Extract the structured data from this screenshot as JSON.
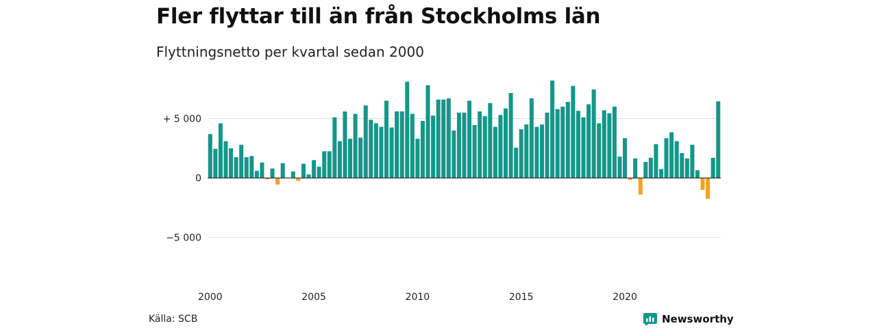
{
  "header": {
    "title": "Fler flyttar till än från Stockholms län",
    "subtitle": "Flyttningsnetto per kvartal sedan 2000"
  },
  "footer": {
    "source": "Källa: SCB",
    "brand": "Newsworthy"
  },
  "colors": {
    "positive": "#16968a",
    "negative": "#f2a41f",
    "grid": "#dddddd",
    "baseline": "#333333",
    "brand": "#16968a"
  },
  "chart_data": {
    "type": "bar",
    "title": "Fler flyttar till än från Stockholms län",
    "subtitle": "Flyttningsnetto per kvartal sedan 2000",
    "xlabel": "",
    "ylabel": "",
    "ylim": [
      -8000,
      9000
    ],
    "grid": true,
    "legend": "none",
    "y_ticks": [
      {
        "value": 5000,
        "label": "+ 5 000"
      },
      {
        "value": 0,
        "label": "0"
      },
      {
        "value": -5000,
        "label": "−5 000"
      }
    ],
    "x_ticks": [
      {
        "year": 2000,
        "label": "2000"
      },
      {
        "year": 2005,
        "label": "2005"
      },
      {
        "year": 2010,
        "label": "2010"
      },
      {
        "year": 2015,
        "label": "2015"
      },
      {
        "year": 2020,
        "label": "2020"
      }
    ],
    "start_year": 2000,
    "values": [
      3700,
      2450,
      4600,
      3100,
      2500,
      1750,
      2800,
      1750,
      1850,
      600,
      1300,
      -100,
      800,
      -550,
      1250,
      0,
      550,
      -250,
      1200,
      300,
      1500,
      950,
      2250,
      2250,
      5100,
      3100,
      5600,
      3300,
      5400,
      3400,
      6100,
      4900,
      4600,
      4300,
      6500,
      4250,
      5600,
      5600,
      8100,
      5400,
      3300,
      4800,
      7800,
      5250,
      6600,
      6600,
      6700,
      4000,
      5500,
      5500,
      6500,
      4450,
      5600,
      5200,
      6300,
      4300,
      5300,
      5850,
      7150,
      2550,
      4100,
      4500,
      6700,
      4300,
      4500,
      5500,
      8200,
      5800,
      6000,
      6400,
      7750,
      5650,
      5100,
      6200,
      7450,
      4600,
      5700,
      5450,
      6000,
      1800,
      3350,
      -150,
      1650,
      -1400,
      1350,
      1700,
      2850,
      750,
      3350,
      3850,
      3100,
      2100,
      1650,
      2800,
      650,
      -1000,
      -1750,
      1700,
      6450
    ]
  }
}
